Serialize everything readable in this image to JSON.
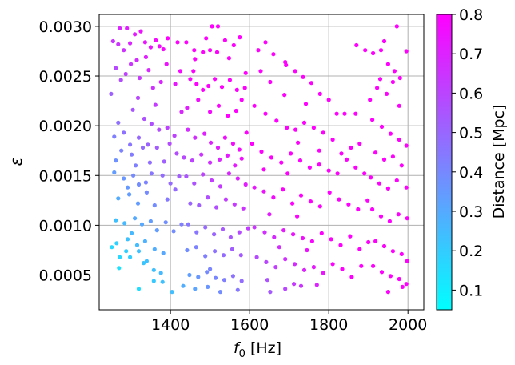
{
  "chart_data": {
    "type": "scatter",
    "title": "",
    "xlabel": "f",
    "xlabel_sub": "0",
    "xlabel_unit": "[Hz]",
    "ylabel": "ε",
    "xlim": [
      1220,
      2040
    ],
    "ylim": [
      0.00015,
      0.00312
    ],
    "x_ticks": [
      1400,
      1600,
      1800,
      2000
    ],
    "x_tick_labels": [
      "1400",
      "1600",
      "1800",
      "2000"
    ],
    "y_ticks": [
      0.0005,
      0.001,
      0.0015,
      0.002,
      0.0025,
      0.003
    ],
    "y_tick_labels": [
      "0.0005",
      "0.0010",
      "0.0015",
      "0.0020",
      "0.0025",
      "0.0030"
    ],
    "grid": true,
    "colorbar": {
      "label": "Distance [Mpc]",
      "range": [
        0.05,
        0.8
      ],
      "ticks": [
        0.1,
        0.2,
        0.3,
        0.4,
        0.5,
        0.6,
        0.7,
        0.8
      ],
      "tick_labels": [
        "0.1",
        "0.2",
        "0.3",
        "0.4",
        "0.5",
        "0.6",
        "0.7",
        "0.8"
      ],
      "colormap": "cool",
      "color_low": "#00ffff",
      "color_high": "#ff00ff"
    },
    "points": [
      [
        1255,
        0.00285
      ],
      [
        1272,
        0.00298
      ],
      [
        1268,
        0.00282
      ],
      [
        1282,
        0.00276
      ],
      [
        1298,
        0.00283
      ],
      [
        1310,
        0.00292
      ],
      [
        1336,
        0.00284
      ],
      [
        1350,
        0.00279
      ],
      [
        1363,
        0.00286
      ],
      [
        1372,
        0.0028
      ],
      [
        1382,
        0.00277
      ],
      [
        1393,
        0.00288
      ],
      [
        1418,
        0.00284
      ],
      [
        1290,
        0.00298
      ],
      [
        1325,
        0.00295
      ],
      [
        1262,
        0.00258
      ],
      [
        1275,
        0.00246
      ],
      [
        1300,
        0.00262
      ],
      [
        1322,
        0.00248
      ],
      [
        1338,
        0.00269
      ],
      [
        1356,
        0.00238
      ],
      [
        1376,
        0.00244
      ],
      [
        1390,
        0.00262
      ],
      [
        1412,
        0.00242
      ],
      [
        1425,
        0.00255
      ],
      [
        1250,
        0.00232
      ],
      [
        1287,
        0.00252
      ],
      [
        1315,
        0.00266
      ],
      [
        1345,
        0.00256
      ],
      [
        1268,
        0.00203
      ],
      [
        1282,
        0.00193
      ],
      [
        1305,
        0.00216
      ],
      [
        1320,
        0.00188
      ],
      [
        1334,
        0.00207
      ],
      [
        1352,
        0.00202
      ],
      [
        1371,
        0.00196
      ],
      [
        1392,
        0.00198
      ],
      [
        1410,
        0.0019
      ],
      [
        1428,
        0.00214
      ],
      [
        1298,
        0.00181
      ],
      [
        1362,
        0.00221
      ],
      [
        1318,
        0.00228
      ],
      [
        1258,
        0.00189
      ],
      [
        1276,
        0.00175
      ],
      [
        1302,
        0.00171
      ],
      [
        1330,
        0.00178
      ],
      [
        1348,
        0.00163
      ],
      [
        1366,
        0.00178
      ],
      [
        1384,
        0.00164
      ],
      [
        1398,
        0.00182
      ],
      [
        1416,
        0.00172
      ],
      [
        1434,
        0.00168
      ],
      [
        1262,
        0.00165
      ],
      [
        1312,
        0.0016
      ],
      [
        1343,
        0.00181
      ],
      [
        1258,
        0.00153
      ],
      [
        1282,
        0.00147
      ],
      [
        1306,
        0.0015
      ],
      [
        1320,
        0.00141
      ],
      [
        1338,
        0.00143
      ],
      [
        1352,
        0.00152
      ],
      [
        1380,
        0.0015
      ],
      [
        1400,
        0.00142
      ],
      [
        1422,
        0.00149
      ],
      [
        1268,
        0.00127
      ],
      [
        1296,
        0.00131
      ],
      [
        1318,
        0.00122
      ],
      [
        1340,
        0.00133
      ],
      [
        1360,
        0.0012
      ],
      [
        1392,
        0.00126
      ],
      [
        1412,
        0.00136
      ],
      [
        1292,
        0.00138
      ],
      [
        1262,
        0.00105
      ],
      [
        1284,
        0.00102
      ],
      [
        1310,
        0.00107
      ],
      [
        1328,
        0.00101
      ],
      [
        1350,
        0.00104
      ],
      [
        1366,
        0.00095
      ],
      [
        1388,
        0.00103
      ],
      [
        1408,
        0.00094
      ],
      [
        1428,
        0.00101
      ],
      [
        1264,
        0.00082
      ],
      [
        1292,
        0.00086
      ],
      [
        1316,
        0.0008
      ],
      [
        1336,
        0.00084
      ],
      [
        1360,
        0.00076
      ],
      [
        1382,
        0.00072
      ],
      [
        1302,
        0.00092
      ],
      [
        1320,
        0.00074
      ],
      [
        1252,
        0.00078
      ],
      [
        1272,
        0.00068
      ],
      [
        1298,
        0.00068
      ],
      [
        1332,
        0.00062
      ],
      [
        1358,
        0.00055
      ],
      [
        1376,
        0.00052
      ],
      [
        1270,
        0.00057
      ],
      [
        1320,
        0.00036
      ],
      [
        1358,
        0.00044
      ],
      [
        1340,
        0.00064
      ],
      [
        1380,
        0.00043
      ],
      [
        1288,
        0.00074
      ],
      [
        1440,
        0.00284
      ],
      [
        1460,
        0.00276
      ],
      [
        1482,
        0.00274
      ],
      [
        1500,
        0.00276
      ],
      [
        1518,
        0.00274
      ],
      [
        1538,
        0.00286
      ],
      [
        1560,
        0.00281
      ],
      [
        1575,
        0.00289
      ],
      [
        1505,
        0.003
      ],
      [
        1520,
        0.003
      ],
      [
        1548,
        0.00268
      ],
      [
        1462,
        0.00267
      ],
      [
        1490,
        0.00288
      ],
      [
        1450,
        0.00247
      ],
      [
        1466,
        0.00242
      ],
      [
        1482,
        0.00236
      ],
      [
        1496,
        0.0024
      ],
      [
        1512,
        0.00247
      ],
      [
        1530,
        0.00239
      ],
      [
        1550,
        0.00246
      ],
      [
        1568,
        0.00236
      ],
      [
        1588,
        0.00238
      ],
      [
        1442,
        0.00218
      ],
      [
        1470,
        0.00226
      ],
      [
        1500,
        0.00214
      ],
      [
        1522,
        0.0022
      ],
      [
        1545,
        0.0021
      ],
      [
        1566,
        0.00215
      ],
      [
        1580,
        0.00226
      ],
      [
        1458,
        0.00255
      ],
      [
        1590,
        0.00253
      ],
      [
        1444,
        0.00196
      ],
      [
        1462,
        0.00188
      ],
      [
        1486,
        0.00192
      ],
      [
        1502,
        0.00183
      ],
      [
        1520,
        0.00178
      ],
      [
        1538,
        0.00188
      ],
      [
        1558,
        0.00182
      ],
      [
        1574,
        0.00176
      ],
      [
        1592,
        0.00193
      ],
      [
        1455,
        0.00165
      ],
      [
        1478,
        0.00171
      ],
      [
        1500,
        0.00163
      ],
      [
        1524,
        0.00166
      ],
      [
        1544,
        0.0017
      ],
      [
        1563,
        0.0016
      ],
      [
        1580,
        0.00167
      ],
      [
        1440,
        0.00149
      ],
      [
        1460,
        0.00142
      ],
      [
        1482,
        0.00151
      ],
      [
        1504,
        0.00145
      ],
      [
        1526,
        0.00139
      ],
      [
        1548,
        0.00152
      ],
      [
        1570,
        0.00147
      ],
      [
        1590,
        0.00141
      ],
      [
        1450,
        0.00122
      ],
      [
        1472,
        0.0012
      ],
      [
        1494,
        0.00128
      ],
      [
        1516,
        0.00118
      ],
      [
        1540,
        0.00126
      ],
      [
        1562,
        0.00121
      ],
      [
        1584,
        0.00117
      ],
      [
        1445,
        0.00101
      ],
      [
        1466,
        0.00093
      ],
      [
        1488,
        0.00098
      ],
      [
        1510,
        0.00091
      ],
      [
        1532,
        0.00096
      ],
      [
        1552,
        0.00088
      ],
      [
        1574,
        0.00093
      ],
      [
        1596,
        0.00097
      ],
      [
        1442,
        0.00075
      ],
      [
        1465,
        0.00078
      ],
      [
        1488,
        0.00069
      ],
      [
        1512,
        0.00074
      ],
      [
        1534,
        0.0007
      ],
      [
        1556,
        0.00076
      ],
      [
        1578,
        0.0007
      ],
      [
        1448,
        0.0005
      ],
      [
        1470,
        0.00048
      ],
      [
        1492,
        0.00053
      ],
      [
        1514,
        0.00047
      ],
      [
        1536,
        0.00045
      ],
      [
        1558,
        0.00049
      ],
      [
        1580,
        0.00044
      ],
      [
        1404,
        0.00033
      ],
      [
        1432,
        0.00039
      ],
      [
        1462,
        0.00036
      ],
      [
        1494,
        0.00038
      ],
      [
        1526,
        0.00033
      ],
      [
        1570,
        0.00035
      ],
      [
        1500,
        0.00056
      ],
      [
        1622,
        0.00276
      ],
      [
        1640,
        0.00284
      ],
      [
        1660,
        0.00272
      ],
      [
        1690,
        0.00264
      ],
      [
        1715,
        0.00255
      ],
      [
        1735,
        0.00249
      ],
      [
        1756,
        0.00243
      ],
      [
        1778,
        0.00232
      ],
      [
        1800,
        0.00226
      ],
      [
        1820,
        0.00212
      ],
      [
        1840,
        0.00212
      ],
      [
        1868,
        0.00212
      ],
      [
        1870,
        0.00281
      ],
      [
        1628,
        0.00255
      ],
      [
        1652,
        0.00244
      ],
      [
        1688,
        0.00231
      ],
      [
        1742,
        0.00222
      ],
      [
        1692,
        0.00261
      ],
      [
        1612,
        0.0022
      ],
      [
        1640,
        0.00212
      ],
      [
        1668,
        0.00205
      ],
      [
        1694,
        0.00198
      ],
      [
        1716,
        0.00196
      ],
      [
        1738,
        0.00203
      ],
      [
        1762,
        0.00198
      ],
      [
        1786,
        0.00193
      ],
      [
        1810,
        0.00186
      ],
      [
        1832,
        0.00172
      ],
      [
        1856,
        0.00178
      ],
      [
        1878,
        0.00182
      ],
      [
        1722,
        0.00183
      ],
      [
        1776,
        0.00175
      ],
      [
        1606,
        0.00182
      ],
      [
        1630,
        0.00174
      ],
      [
        1655,
        0.00168
      ],
      [
        1680,
        0.00163
      ],
      [
        1704,
        0.00172
      ],
      [
        1728,
        0.00165
      ],
      [
        1752,
        0.00158
      ],
      [
        1776,
        0.00161
      ],
      [
        1800,
        0.00155
      ],
      [
        1822,
        0.00152
      ],
      [
        1845,
        0.00166
      ],
      [
        1868,
        0.00158
      ],
      [
        1890,
        0.00152
      ],
      [
        1636,
        0.00156
      ],
      [
        1696,
        0.00152
      ],
      [
        1612,
        0.00138
      ],
      [
        1636,
        0.00134
      ],
      [
        1660,
        0.00128
      ],
      [
        1684,
        0.00136
      ],
      [
        1708,
        0.00122
      ],
      [
        1730,
        0.0013
      ],
      [
        1754,
        0.00124
      ],
      [
        1778,
        0.00119
      ],
      [
        1802,
        0.00133
      ],
      [
        1826,
        0.00126
      ],
      [
        1850,
        0.00121
      ],
      [
        1874,
        0.00116
      ],
      [
        1898,
        0.00125
      ],
      [
        1650,
        0.00111
      ],
      [
        1720,
        0.00109
      ],
      [
        1612,
        0.00098
      ],
      [
        1638,
        0.00093
      ],
      [
        1662,
        0.00088
      ],
      [
        1686,
        0.00095
      ],
      [
        1710,
        0.00091
      ],
      [
        1734,
        0.00087
      ],
      [
        1758,
        0.00084
      ],
      [
        1782,
        0.00092
      ],
      [
        1806,
        0.00086
      ],
      [
        1830,
        0.0008
      ],
      [
        1854,
        0.00089
      ],
      [
        1878,
        0.00076
      ],
      [
        1900,
        0.00083
      ],
      [
        1675,
        0.00078
      ],
      [
        1745,
        0.00075
      ],
      [
        1618,
        0.00068
      ],
      [
        1642,
        0.00063
      ],
      [
        1666,
        0.00058
      ],
      [
        1690,
        0.00066
      ],
      [
        1714,
        0.00061
      ],
      [
        1738,
        0.00055
      ],
      [
        1762,
        0.00058
      ],
      [
        1786,
        0.00052
      ],
      [
        1810,
        0.00061
      ],
      [
        1834,
        0.00056
      ],
      [
        1858,
        0.00048
      ],
      [
        1882,
        0.00059
      ],
      [
        1645,
        0.00045
      ],
      [
        1712,
        0.00041
      ],
      [
        1652,
        0.00033
      ],
      [
        1690,
        0.00036
      ],
      [
        1730,
        0.00039
      ],
      [
        1770,
        0.0004
      ],
      [
        1892,
        0.00276
      ],
      [
        1912,
        0.00273
      ],
      [
        1932,
        0.00276
      ],
      [
        1950,
        0.00262
      ],
      [
        1966,
        0.00255
      ],
      [
        1980,
        0.00248
      ],
      [
        1996,
        0.00275
      ],
      [
        1940,
        0.00285
      ],
      [
        1972,
        0.003
      ],
      [
        1922,
        0.00238
      ],
      [
        1946,
        0.00232
      ],
      [
        1962,
        0.00244
      ],
      [
        1978,
        0.0022
      ],
      [
        1904,
        0.00226
      ],
      [
        1930,
        0.00247
      ],
      [
        1910,
        0.00206
      ],
      [
        1934,
        0.00199
      ],
      [
        1956,
        0.00192
      ],
      [
        1978,
        0.00186
      ],
      [
        1996,
        0.0018
      ],
      [
        1918,
        0.00173
      ],
      [
        1940,
        0.00166
      ],
      [
        1962,
        0.00169
      ],
      [
        1984,
        0.0016
      ],
      [
        1906,
        0.00148
      ],
      [
        1928,
        0.00142
      ],
      [
        1950,
        0.00137
      ],
      [
        1972,
        0.00145
      ],
      [
        1996,
        0.00138
      ],
      [
        1910,
        0.00116
      ],
      [
        1932,
        0.00109
      ],
      [
        1954,
        0.00104
      ],
      [
        1976,
        0.00111
      ],
      [
        1998,
        0.00107
      ],
      [
        1918,
        0.00084
      ],
      [
        1940,
        0.00079
      ],
      [
        1962,
        0.00074
      ],
      [
        1984,
        0.00071
      ],
      [
        1998,
        0.00064
      ],
      [
        1912,
        0.00059
      ],
      [
        1934,
        0.00053
      ],
      [
        1956,
        0.00049
      ],
      [
        1978,
        0.00046
      ],
      [
        1996,
        0.00041
      ],
      [
        1986,
        0.00038
      ],
      [
        1950,
        0.00033
      ]
    ]
  }
}
